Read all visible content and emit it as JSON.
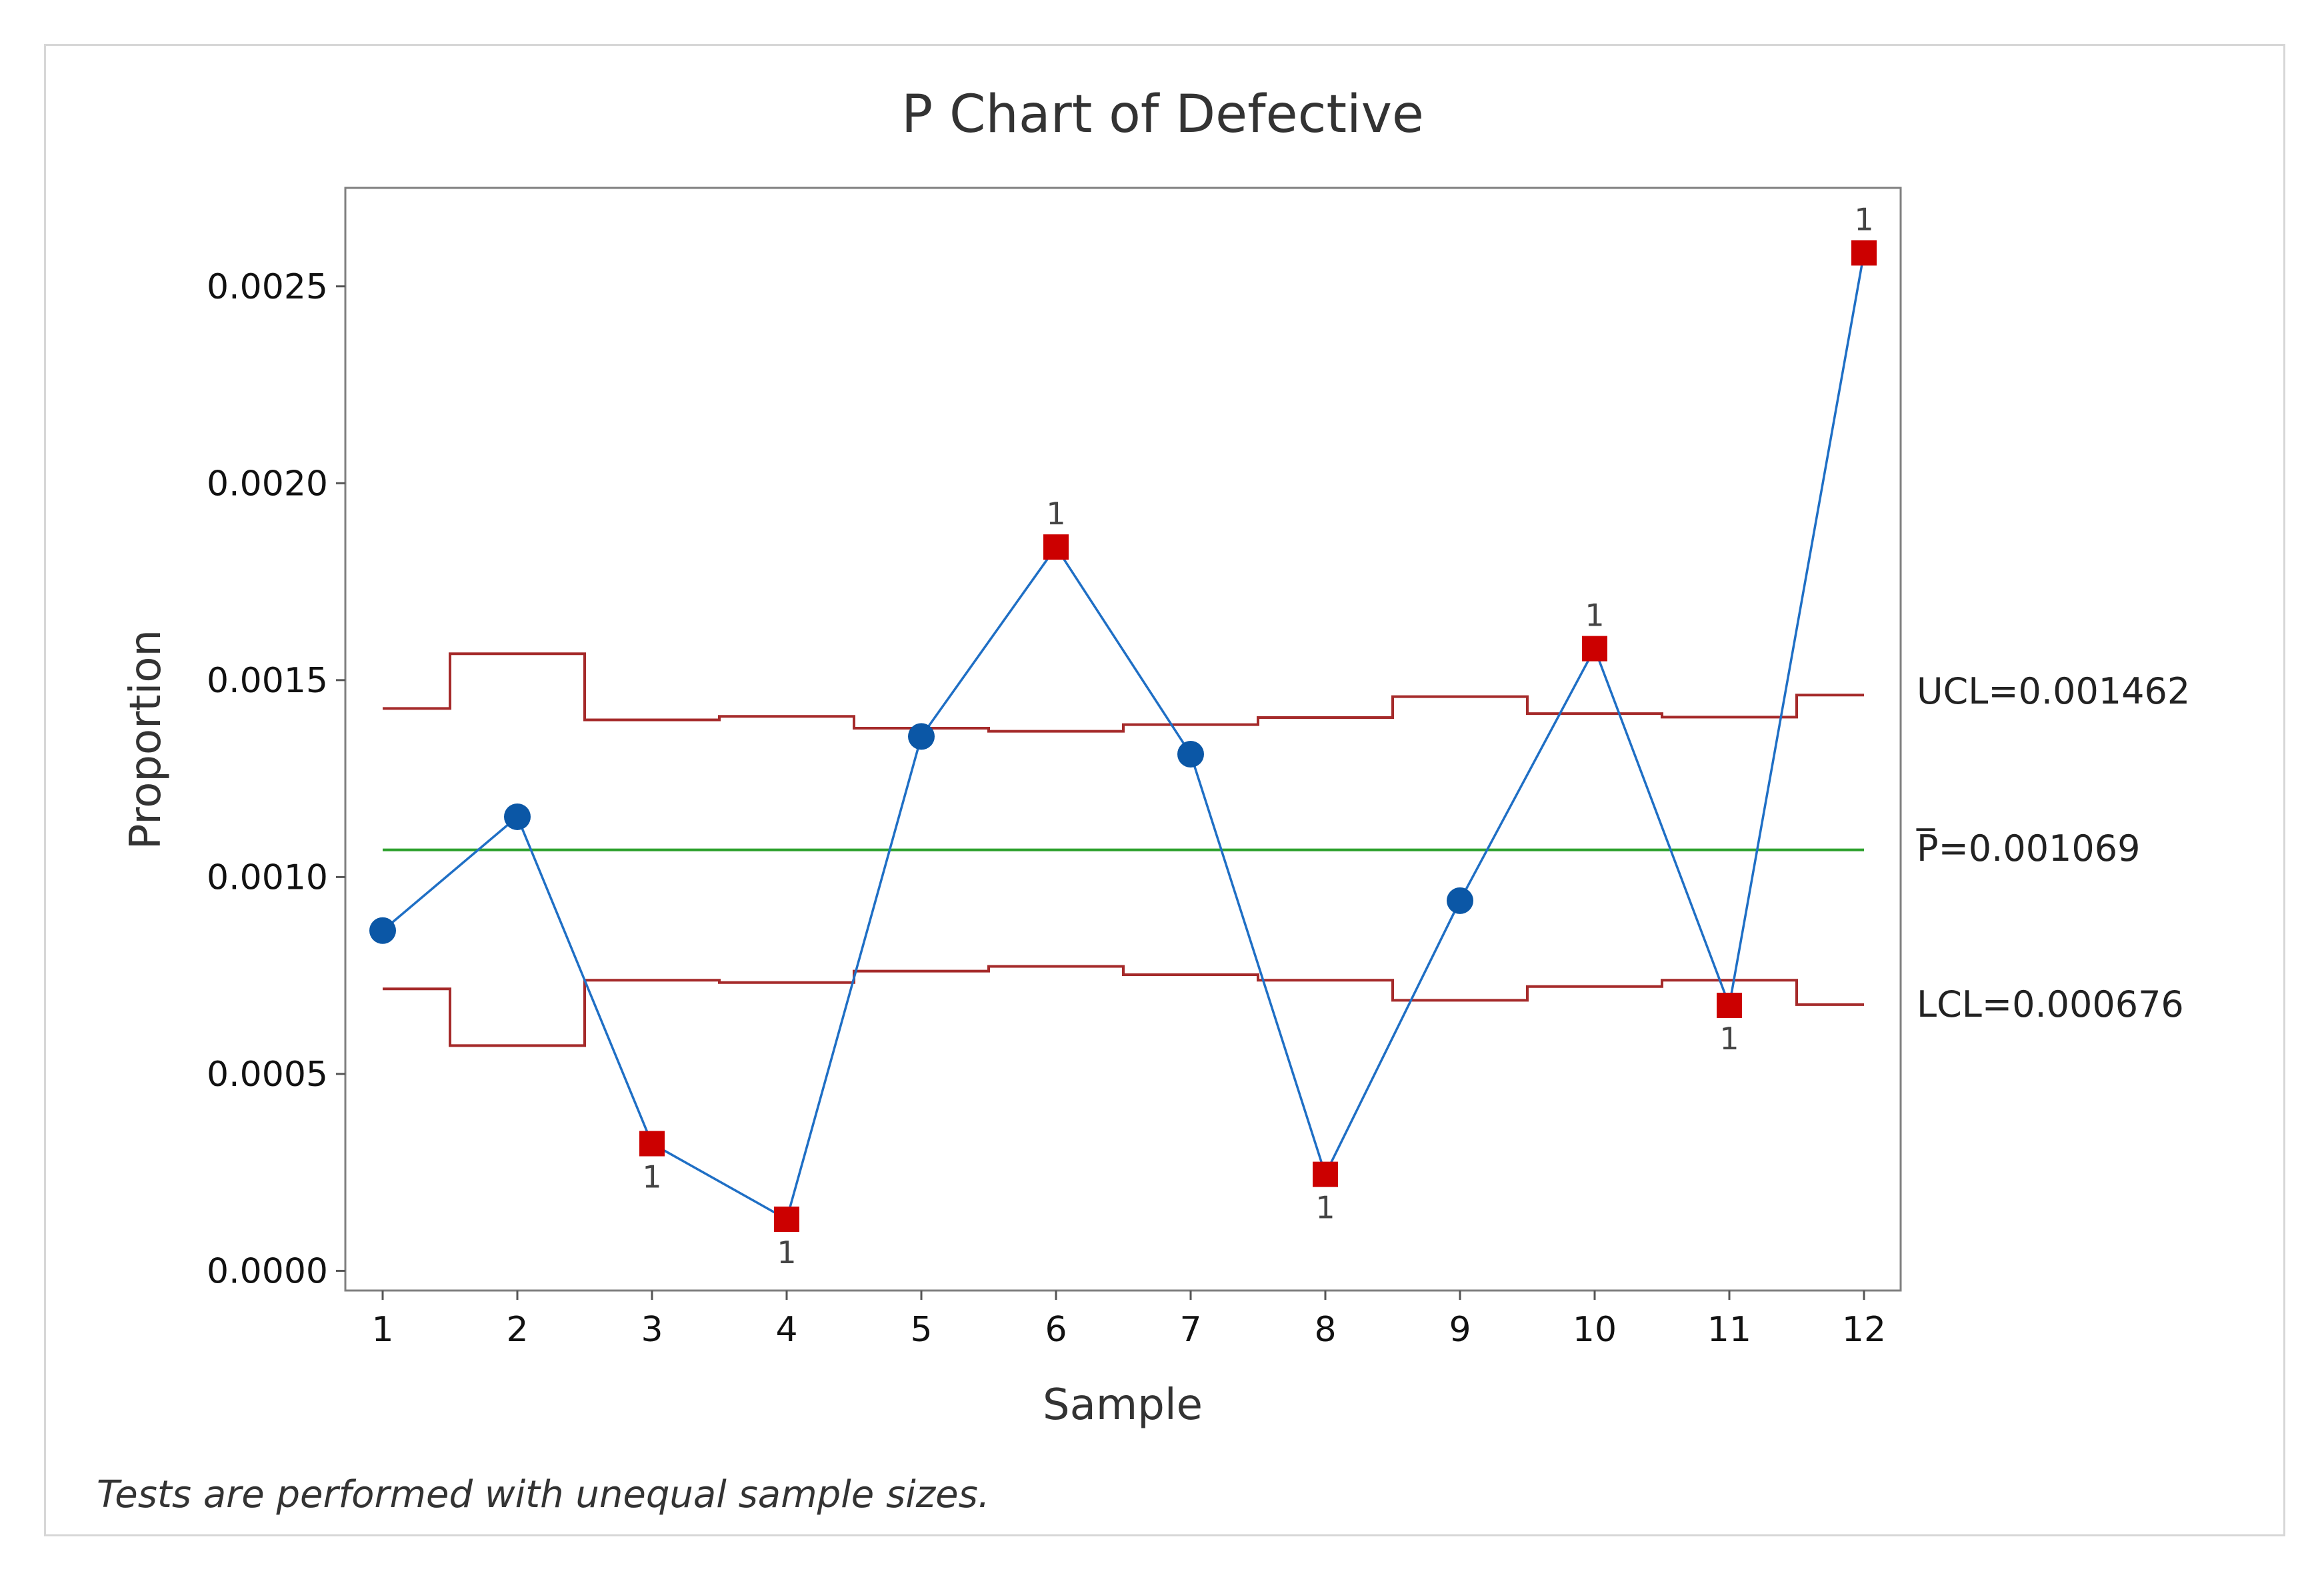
{
  "chart_data": {
    "type": "line",
    "title": "P Chart of Defective",
    "xlabel": "Sample",
    "ylabel": "Proportion",
    "footnote": "Tests are performed with unequal sample sizes.",
    "x": [
      1,
      2,
      3,
      4,
      5,
      6,
      7,
      8,
      9,
      10,
      11,
      12
    ],
    "x_tick_labels": [
      "1",
      "2",
      "3",
      "4",
      "5",
      "6",
      "7",
      "8",
      "9",
      "10",
      "11",
      "12"
    ],
    "ylim": [
      -5e-05,
      0.00275
    ],
    "y_ticks": [
      0.0,
      0.0005,
      0.001,
      0.0015,
      0.002,
      0.0025
    ],
    "y_tick_labels": [
      "0.0000",
      "0.0005",
      "0.0010",
      "0.0015",
      "0.0020",
      "0.0025"
    ],
    "series": [
      {
        "name": "Proportion",
        "values": [
          0.000864,
          0.001153,
          0.000323,
          0.000131,
          0.001357,
          0.001838,
          0.001312,
          0.000245,
          0.00094,
          0.00158,
          0.000674,
          0.002585
        ],
        "flags": [
          "",
          "",
          "1",
          "1",
          "",
          "1",
          "",
          "1",
          "",
          "1",
          "1",
          "1"
        ],
        "flag_position": [
          "",
          "",
          "below",
          "below",
          "",
          "above",
          "",
          "below",
          "",
          "above",
          "below",
          "above"
        ]
      },
      {
        "name": "UCL",
        "values": [
          0.001428,
          0.001567,
          0.001399,
          0.001408,
          0.001378,
          0.00137,
          0.001387,
          0.001405,
          0.001458,
          0.001415,
          0.001406,
          0.001462
        ]
      },
      {
        "name": "LCL",
        "values": [
          0.000716,
          0.000572,
          0.000738,
          0.000732,
          0.000761,
          0.000773,
          0.000752,
          0.000738,
          0.000687,
          0.000722,
          0.000738,
          0.000676
        ]
      },
      {
        "name": "P",
        "values": [
          0.001069,
          0.001069,
          0.001069,
          0.001069,
          0.001069,
          0.001069,
          0.001069,
          0.001069,
          0.001069,
          0.001069,
          0.001069,
          0.001069
        ]
      }
    ],
    "reference_labels": {
      "ucl": "UCL=0.001462",
      "center_bar": "_",
      "center": "P=0.001069",
      "lcl": "LCL=0.000676"
    },
    "colors": {
      "line": "#1f6fc5",
      "point_in_control": "#0b57a6",
      "point_flagged": "#cc0000",
      "limits": "#a52a2a",
      "center": "#2ca02c",
      "plot_border": "#7f7f7f"
    }
  }
}
